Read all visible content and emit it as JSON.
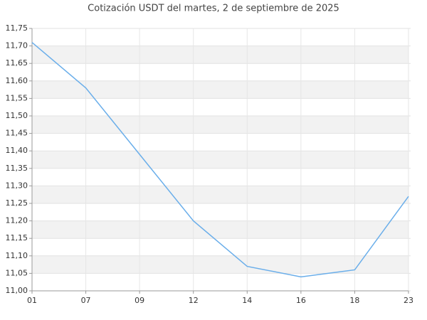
{
  "chart_data": {
    "type": "line",
    "title": "Cotización USDT del martes, 2 de septiembre de 2025",
    "categories": [
      "01",
      "07",
      "09",
      "12",
      "14",
      "16",
      "18",
      "23"
    ],
    "series": [
      {
        "color": "#6aaeea",
        "values": [
          11.71,
          11.58,
          11.39,
          11.2,
          11.07,
          11.04,
          11.06,
          11.27
        ]
      }
    ],
    "ylim": [
      11.0,
      11.75
    ],
    "yticks": [
      {
        "value": 11.0,
        "label": "11,00"
      },
      {
        "value": 11.05,
        "label": "11,05"
      },
      {
        "value": 11.1,
        "label": "11,10"
      },
      {
        "value": 11.15,
        "label": "11,15"
      },
      {
        "value": 11.2,
        "label": "11,20"
      },
      {
        "value": 11.25,
        "label": "11,25"
      },
      {
        "value": 11.3,
        "label": "11,30"
      },
      {
        "value": 11.35,
        "label": "11,35"
      },
      {
        "value": 11.4,
        "label": "11,40"
      },
      {
        "value": 11.45,
        "label": "11,45"
      },
      {
        "value": 11.5,
        "label": "11,50"
      },
      {
        "value": 11.55,
        "label": "11,55"
      },
      {
        "value": 11.6,
        "label": "11,60"
      },
      {
        "value": 11.65,
        "label": "11,65"
      },
      {
        "value": 11.7,
        "label": "11,70"
      },
      {
        "value": 11.75,
        "label": "11,75"
      }
    ],
    "grid": true
  }
}
